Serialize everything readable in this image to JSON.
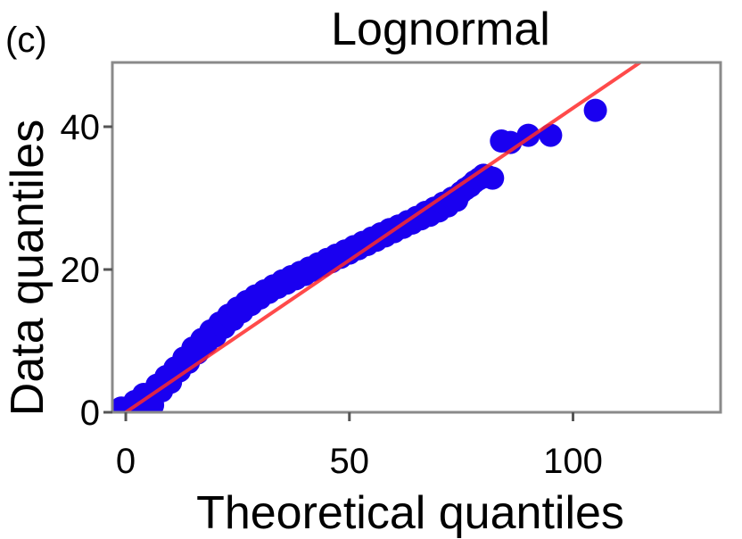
{
  "panel_label": "(c)",
  "chart_data": {
    "type": "scatter",
    "title": "Lognormal",
    "xlabel": "Theoretical quantiles",
    "ylabel": "Data quantiles",
    "xlim": [
      -3,
      133
    ],
    "ylim": [
      0,
      49
    ],
    "x_ticks": [
      {
        "value": 0,
        "label": "0"
      },
      {
        "value": 50,
        "label": "50"
      },
      {
        "value": 100,
        "label": "100"
      }
    ],
    "y_ticks": [
      {
        "value": 0,
        "label": "0"
      },
      {
        "value": 20,
        "label": "20"
      },
      {
        "value": 40,
        "label": "40"
      }
    ],
    "grid": false,
    "legend": "none",
    "reference_line": {
      "color": "#ff2a2a",
      "points": [
        [
          0,
          0
        ],
        [
          115,
          49
        ]
      ]
    },
    "series": [
      {
        "color": "#1a00f0",
        "points": [
          [
            -1,
            0.6
          ],
          [
            0,
            0.5
          ],
          [
            1,
            0.8
          ],
          [
            2,
            1.5
          ],
          [
            3,
            0.3
          ],
          [
            4,
            2.5
          ],
          [
            5,
            2.2
          ],
          [
            6,
            1.0
          ],
          [
            7,
            3.8
          ],
          [
            8,
            3.0
          ],
          [
            9,
            5.0
          ],
          [
            10,
            4.2
          ],
          [
            11,
            6.2
          ],
          [
            12,
            5.8
          ],
          [
            13,
            7.6
          ],
          [
            14,
            7.0
          ],
          [
            15,
            9.0
          ],
          [
            16,
            8.3
          ],
          [
            17,
            10.2
          ],
          [
            18,
            9.6
          ],
          [
            19,
            11.4
          ],
          [
            20,
            10.7
          ],
          [
            21,
            12.5
          ],
          [
            22,
            11.9
          ],
          [
            23,
            13.6
          ],
          [
            24,
            13.0
          ],
          [
            25,
            14.6
          ],
          [
            26,
            14.1
          ],
          [
            27,
            15.5
          ],
          [
            28,
            15.1
          ],
          [
            29,
            16.3
          ],
          [
            30,
            16.0
          ],
          [
            31,
            17.0
          ],
          [
            32,
            16.8
          ],
          [
            33,
            17.7
          ],
          [
            34,
            17.5
          ],
          [
            35,
            18.4
          ],
          [
            36,
            18.1
          ],
          [
            37,
            19.0
          ],
          [
            38,
            18.7
          ],
          [
            39,
            19.6
          ],
          [
            40,
            19.3
          ],
          [
            41,
            20.2
          ],
          [
            42,
            19.9
          ],
          [
            43,
            20.8
          ],
          [
            44,
            20.5
          ],
          [
            45,
            21.4
          ],
          [
            46,
            21.1
          ],
          [
            47,
            22.0
          ],
          [
            48,
            21.7
          ],
          [
            49,
            22.6
          ],
          [
            50,
            22.3
          ],
          [
            51,
            23.2
          ],
          [
            52,
            22.9
          ],
          [
            53,
            23.8
          ],
          [
            54,
            23.5
          ],
          [
            55,
            24.4
          ],
          [
            56,
            24.1
          ],
          [
            57,
            25.0
          ],
          [
            58,
            24.7
          ],
          [
            59,
            25.6
          ],
          [
            60,
            25.3
          ],
          [
            61,
            26.1
          ],
          [
            62,
            25.9
          ],
          [
            63,
            26.7
          ],
          [
            64,
            26.5
          ],
          [
            65,
            27.3
          ],
          [
            66,
            27.1
          ],
          [
            67,
            28.0
          ],
          [
            68,
            27.6
          ],
          [
            69,
            28.6
          ],
          [
            70,
            28.2
          ],
          [
            71,
            29.3
          ],
          [
            72,
            28.9
          ],
          [
            73,
            30.0
          ],
          [
            74,
            29.7
          ],
          [
            75,
            30.8
          ],
          [
            76,
            31.3
          ],
          [
            77,
            31.7
          ],
          [
            78,
            32.3
          ],
          [
            79,
            32.7
          ],
          [
            80,
            33.2
          ],
          [
            81,
            33.0
          ],
          [
            82,
            32.8
          ],
          [
            84,
            38.0
          ],
          [
            86,
            37.8
          ],
          [
            90,
            38.8
          ],
          [
            95,
            38.8
          ],
          [
            105,
            42.3
          ]
        ]
      }
    ]
  }
}
